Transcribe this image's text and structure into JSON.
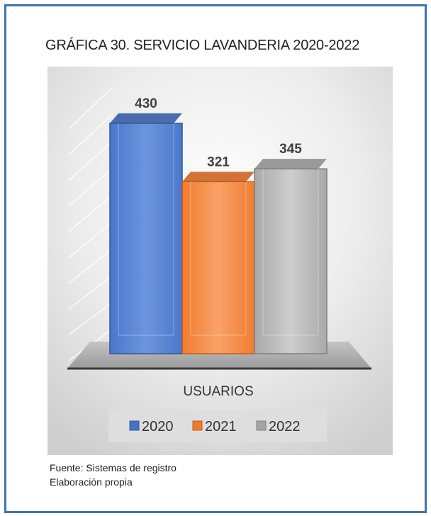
{
  "chart_data": {
    "type": "bar",
    "title": "GRÁFICA 30. SERVICIO LAVANDERIA 2020-2022",
    "categories": [
      "USUARIOS"
    ],
    "xlabel": "USUARIOS",
    "ylabel": "",
    "ylim": [
      0,
      500
    ],
    "grid": true,
    "legend": "bottom",
    "series": [
      {
        "name": "2020",
        "values": [
          430
        ],
        "color": "#4472c4"
      },
      {
        "name": "2021",
        "values": [
          321
        ],
        "color": "#ed7d31"
      },
      {
        "name": "2022",
        "values": [
          345
        ],
        "color": "#a5a5a5"
      }
    ],
    "data_labels": [
      "430",
      "321",
      "345"
    ]
  },
  "footer": {
    "source": "Fuente: Sistemas de registro",
    "author": "Elaboración propia"
  }
}
